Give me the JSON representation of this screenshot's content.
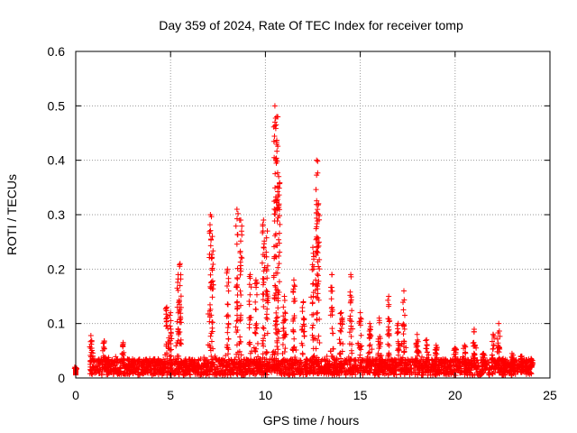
{
  "chart_data": {
    "type": "scatter",
    "title": "Day 359 of 2024, Rate Of TEC Index for receiver tomp",
    "xlabel": "GPS time / hours",
    "ylabel": "ROTI / TECUs",
    "xlim": [
      0,
      25
    ],
    "ylim": [
      0,
      0.6
    ],
    "xticks": [
      0,
      5,
      10,
      15,
      20,
      25
    ],
    "yticks": [
      0,
      0.1,
      0.2,
      0.3,
      0.4,
      0.5,
      0.6
    ],
    "xtick_labels": [
      "0",
      "5",
      "10",
      "15",
      "20",
      "25"
    ],
    "ytick_labels": [
      "0",
      "0.1",
      "0.2",
      "0.3",
      "0.4",
      "0.5",
      "0.6"
    ],
    "grid": true,
    "marker": "+",
    "color": "#ff0000",
    "spikes": [
      [
        0.0,
        0.015
      ],
      [
        0.8,
        0.078
      ],
      [
        1.5,
        0.068
      ],
      [
        2.5,
        0.065
      ],
      [
        4.8,
        0.13
      ],
      [
        5.0,
        0.12
      ],
      [
        5.5,
        0.21
      ],
      [
        5.4,
        0.19
      ],
      [
        7.1,
        0.3
      ],
      [
        7.2,
        0.26
      ],
      [
        8.0,
        0.2
      ],
      [
        8.5,
        0.31
      ],
      [
        8.7,
        0.29
      ],
      [
        9.2,
        0.19
      ],
      [
        9.5,
        0.18
      ],
      [
        9.9,
        0.29
      ],
      [
        10.1,
        0.27
      ],
      [
        10.5,
        0.5
      ],
      [
        10.6,
        0.48
      ],
      [
        10.7,
        0.37
      ],
      [
        11.0,
        0.15
      ],
      [
        11.5,
        0.18
      ],
      [
        12.0,
        0.14
      ],
      [
        12.5,
        0.24
      ],
      [
        12.7,
        0.4
      ],
      [
        12.8,
        0.32
      ],
      [
        13.5,
        0.19
      ],
      [
        14.0,
        0.12
      ],
      [
        14.5,
        0.19
      ],
      [
        15.0,
        0.12
      ],
      [
        15.5,
        0.1
      ],
      [
        16.0,
        0.11
      ],
      [
        16.5,
        0.15
      ],
      [
        17.0,
        0.1
      ],
      [
        17.3,
        0.16
      ],
      [
        18.0,
        0.08
      ],
      [
        18.5,
        0.07
      ],
      [
        19.0,
        0.06
      ],
      [
        20.0,
        0.055
      ],
      [
        20.5,
        0.06
      ],
      [
        21.0,
        0.085
      ],
      [
        21.5,
        0.045
      ],
      [
        22.0,
        0.08
      ],
      [
        22.3,
        0.1
      ],
      [
        23.0,
        0.045
      ],
      [
        23.5,
        0.04
      ],
      [
        24.0,
        0.035
      ]
    ]
  }
}
